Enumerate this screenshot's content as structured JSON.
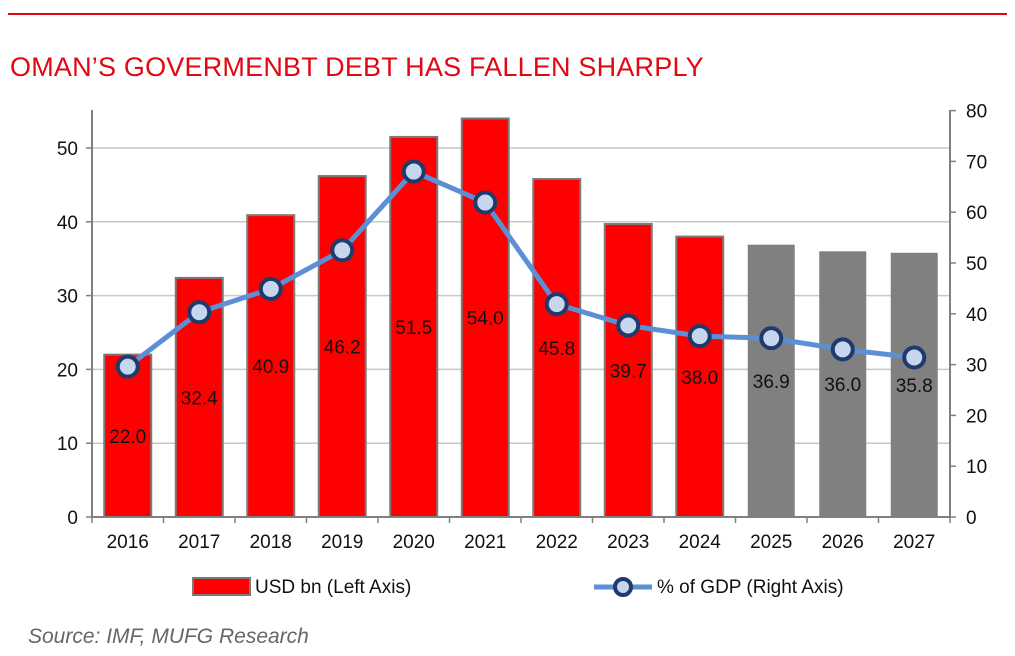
{
  "chart_data": {
    "type": "bar",
    "title": "OMAN’S GOVERMENBT DEBT HAS FALLEN SHARPLY",
    "categories": [
      "2016",
      "2017",
      "2018",
      "2019",
      "2020",
      "2021",
      "2022",
      "2023",
      "2024",
      "2025",
      "2026",
      "2027"
    ],
    "series": [
      {
        "name": "USD bn (Left Axis)",
        "axis": "left",
        "values": [
          22.0,
          32.4,
          40.9,
          46.2,
          51.5,
          54.0,
          45.8,
          39.7,
          38.0,
          36.9,
          36.0,
          35.8
        ],
        "labels": [
          "22.0",
          "32.4",
          "40.9",
          "46.2",
          "51.5",
          "54.0",
          "45.8",
          "39.7",
          "38.0",
          "36.9",
          "36.0",
          "35.8"
        ],
        "colors": [
          "#ff0000",
          "#ff0000",
          "#ff0000",
          "#ff0000",
          "#ff0000",
          "#ff0000",
          "#ff0000",
          "#ff0000",
          "#ff0000",
          "#808080",
          "#808080",
          "#808080"
        ]
      },
      {
        "name": "% of GDP (Right Axis)",
        "axis": "right",
        "type": "line",
        "values": [
          29.6,
          40.3,
          44.9,
          52.5,
          68.0,
          61.9,
          41.9,
          37.7,
          35.6,
          35.2,
          33.0,
          31.4
        ],
        "color": "#5b8fd6",
        "marker_fill": "#c6d6ee",
        "marker_stroke": "#1f3b6b"
      }
    ],
    "y_left": {
      "min": 0,
      "max": 55,
      "ticks": [
        0,
        10,
        20,
        30,
        40,
        50
      ]
    },
    "y_right": {
      "min": 0,
      "max": 80,
      "ticks": [
        0,
        10,
        20,
        30,
        40,
        50,
        60,
        70,
        80
      ]
    },
    "grid": true,
    "legend": {
      "placement": "bottom",
      "bar_label": "USD bn (Left Axis)",
      "line_label": "%  of GDP (Right Axis)"
    },
    "source": "Source: IMF, MUFG Research",
    "accent_color": "#e30613"
  }
}
